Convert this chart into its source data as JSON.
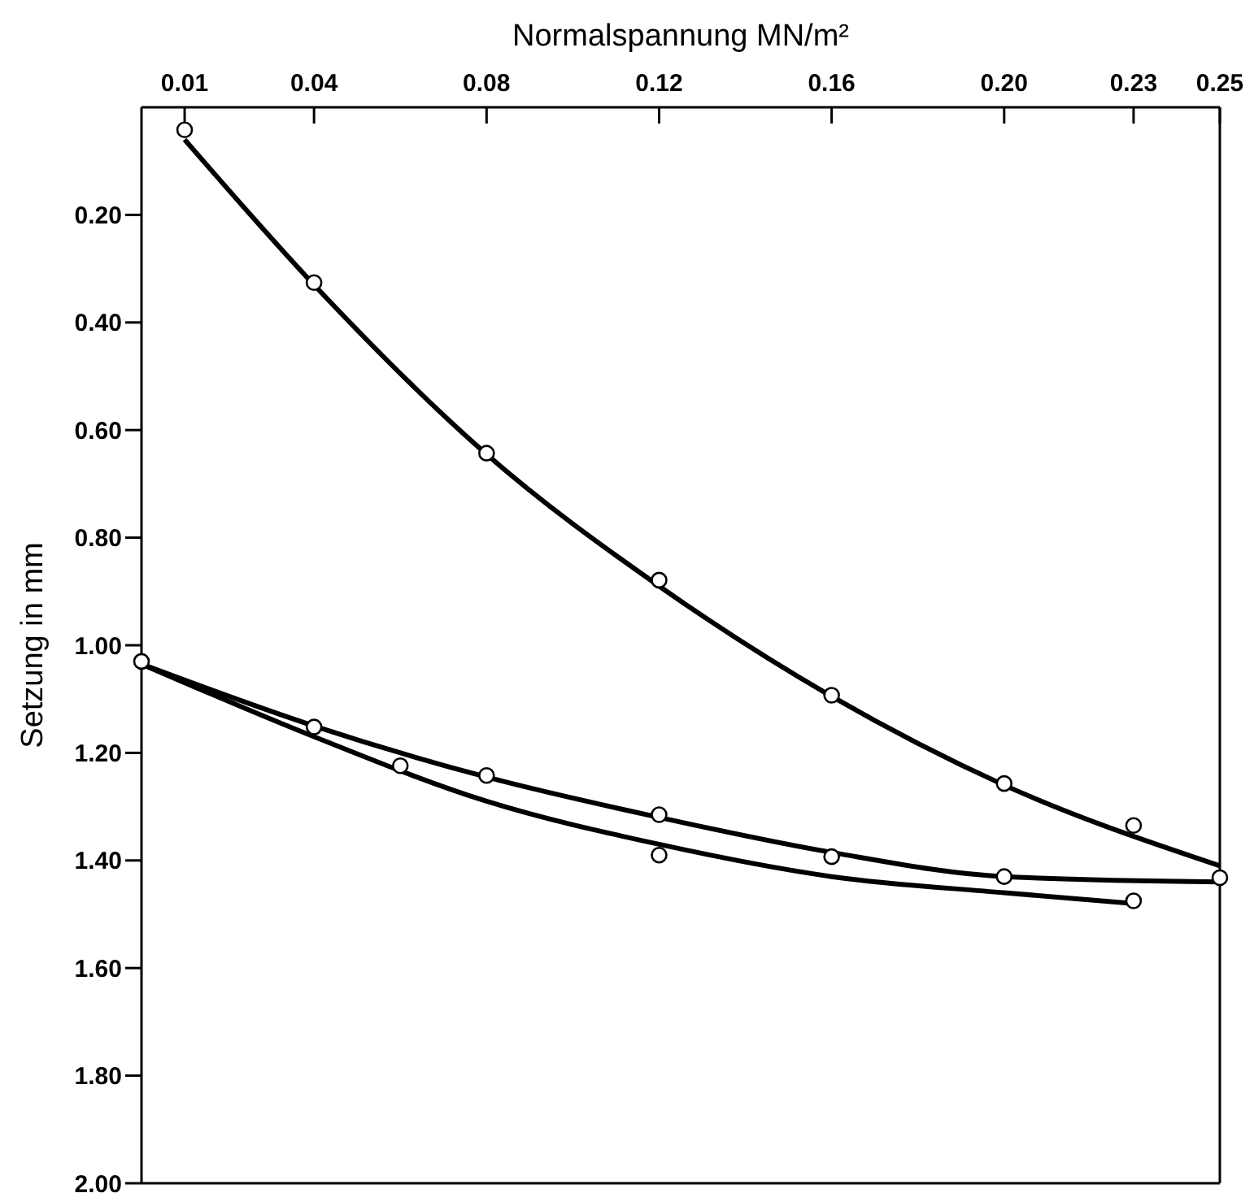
{
  "chart_data": {
    "type": "scatter",
    "xlabel": "Normalspannung MN/m²",
    "ylabel": "Setzung in mm",
    "xlim": [
      0,
      0.25
    ],
    "ylim": [
      2.0,
      0
    ],
    "xticks": [
      0.01,
      0.04,
      0.08,
      0.12,
      0.16,
      {
        "value": 0.2,
        "label": "0.20"
      },
      0.23,
      0.25
    ],
    "yticks": [
      {
        "value": 0.2,
        "label": "0.20"
      },
      {
        "value": 0.4,
        "label": "0.40"
      },
      {
        "value": 0.6,
        "label": "0.60"
      },
      {
        "value": 0.8,
        "label": "0.80"
      },
      {
        "value": 1.0,
        "label": "1.00"
      },
      {
        "value": 1.2,
        "label": "1.20"
      },
      {
        "value": 1.4,
        "label": "1.40"
      },
      {
        "value": 1.6,
        "label": "1.60"
      },
      {
        "value": 1.8,
        "label": "1.80"
      },
      {
        "value": 2.0,
        "label": "2.00"
      }
    ],
    "grid": false,
    "marker": "circle",
    "series": [
      {
        "type": "line",
        "color": "#000000",
        "marker": "none",
        "x": [
          0.01,
          0.04,
          0.08,
          0.12,
          0.16,
          0.2,
          0.25
        ],
        "values": [
          0.06,
          0.33,
          0.645,
          0.89,
          1.095,
          1.26,
          1.41
        ]
      },
      {
        "type": "line",
        "color": "#000000",
        "marker": "none",
        "x": [
          0,
          0.04,
          0.08,
          0.12,
          0.16,
          0.2,
          0.25
        ],
        "values": [
          1.035,
          1.15,
          1.245,
          1.32,
          1.385,
          1.43,
          1.44
        ]
      },
      {
        "type": "line",
        "color": "#000000",
        "marker": "none",
        "x": [
          0,
          0.04,
          0.08,
          0.12,
          0.16,
          0.2,
          0.23
        ],
        "values": [
          1.035,
          1.17,
          1.29,
          1.37,
          1.43,
          1.46,
          1.48
        ]
      },
      {
        "color": "#000000",
        "x": [
          0.01,
          0.04,
          0.08,
          0.12,
          0.16,
          0.2,
          0.23
        ],
        "values": [
          0.042,
          0.326,
          0.643,
          0.879,
          1.093,
          1.257,
          1.335
        ]
      },
      {
        "color": "#000000",
        "x": [
          0,
          0.04,
          0.08,
          0.12,
          0.16,
          0.2,
          0.25
        ],
        "values": [
          1.03,
          1.152,
          1.242,
          1.315,
          1.393,
          1.43,
          1.432
        ]
      },
      {
        "color": "#000000",
        "x": [
          0.06,
          0.12,
          0.23
        ],
        "values": [
          1.224,
          1.39,
          1.475
        ]
      }
    ]
  }
}
